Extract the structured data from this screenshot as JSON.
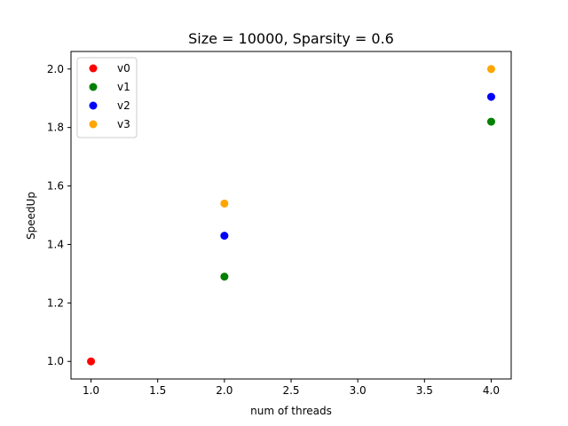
{
  "chart_data": {
    "type": "scatter",
    "title": "Size = 10000, Sparsity = 0.6",
    "xlabel": "num of threads",
    "ylabel": "SpeedUp",
    "xlim": [
      0.85,
      4.15
    ],
    "ylim": [
      0.94,
      2.06
    ],
    "xticks": [
      1.0,
      1.5,
      2.0,
      2.5,
      3.0,
      3.5,
      4.0
    ],
    "xtick_labels": [
      "1.0",
      "1.5",
      "2.0",
      "2.5",
      "3.0",
      "3.5",
      "4.0"
    ],
    "yticks": [
      1.0,
      1.2,
      1.4,
      1.6,
      1.8,
      2.0
    ],
    "ytick_labels": [
      "1.0",
      "1.2",
      "1.4",
      "1.6",
      "1.8",
      "2.0"
    ],
    "grid": false,
    "legend_position": "top-left",
    "series": [
      {
        "name": "v0",
        "color": "#ff0000",
        "points": [
          {
            "x": 1,
            "y": 1.0
          }
        ]
      },
      {
        "name": "v1",
        "color": "#008000",
        "points": [
          {
            "x": 2,
            "y": 1.29
          },
          {
            "x": 4,
            "y": 1.82
          }
        ]
      },
      {
        "name": "v2",
        "color": "#0000ff",
        "points": [
          {
            "x": 2,
            "y": 1.43
          },
          {
            "x": 4,
            "y": 1.905
          }
        ]
      },
      {
        "name": "v3",
        "color": "#ffa500",
        "points": [
          {
            "x": 2,
            "y": 1.54
          },
          {
            "x": 4,
            "y": 2.0
          }
        ]
      }
    ]
  }
}
